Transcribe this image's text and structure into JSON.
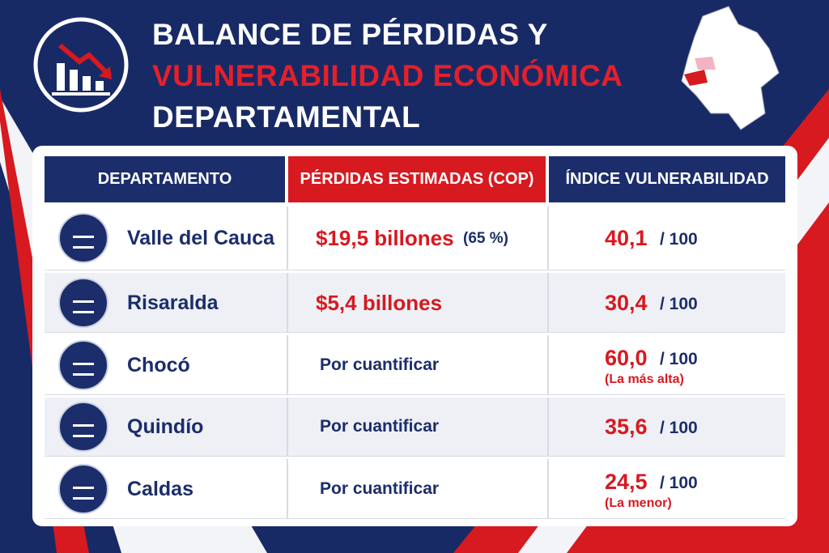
{
  "header": {
    "title_lines": [
      "BALANCE DE PÉRDIDAS Y",
      "VULNERABILIDAD ECONÓMICA",
      "DEPARTAMENTAL"
    ]
  },
  "table": {
    "columns": [
      "DEPARTAMENTO",
      "PÉRDIDAS ESTIMADAS (COP)",
      "ÍNDICE VULNERABILIDAD"
    ],
    "rows": [
      {
        "department": "Valle del Cauca",
        "losses": "$19,5 billones",
        "losses_share": "(65 %)",
        "index": "40,1",
        "index_scale": "/ 100"
      },
      {
        "department": "Risaralda",
        "losses": "$5,4 billones",
        "index": "30,4",
        "index_scale": "/ 100"
      },
      {
        "department": "Chocó",
        "losses": "Por cuantificar",
        "index": "60,0",
        "index_scale": "/ 100",
        "note": "(La más alta)"
      },
      {
        "department": "Quindío",
        "losses": "Por cuantificar",
        "index": "35,6",
        "index_scale": "/ 100"
      },
      {
        "department": "Caldas",
        "losses": "Por cuantificar",
        "index": "24,5",
        "index_scale": "/ 100",
        "note": "(La menor)"
      }
    ]
  }
}
